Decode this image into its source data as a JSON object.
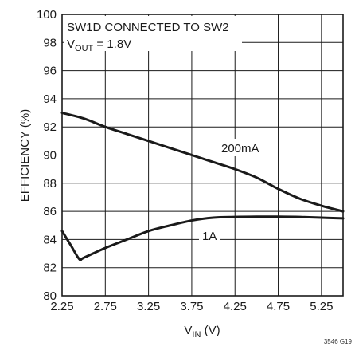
{
  "chart_data": {
    "type": "line",
    "title": "",
    "annotations": {
      "line1": "SW1D CONNECTED TO SW2",
      "line2_prefix": "V",
      "line2_sub": "OUT",
      "line2_rest": " = 1.8V"
    },
    "xlabel": {
      "main": "V",
      "sub": "IN",
      "rest": " (V)"
    },
    "ylabel": "EFFICIENCY (%)",
    "xlim": [
      2.25,
      5.5
    ],
    "ylim": [
      80,
      100
    ],
    "xticks": [
      "2.25",
      "2.75",
      "3.25",
      "3.75",
      "4.25",
      "4.75",
      "5.25"
    ],
    "yticks": [
      "80",
      "82",
      "84",
      "86",
      "88",
      "90",
      "92",
      "94",
      "96",
      "98",
      "100"
    ],
    "grid": true,
    "series": [
      {
        "name": "200mA",
        "x": [
          2.25,
          2.5,
          2.75,
          3.0,
          3.25,
          3.5,
          3.75,
          4.0,
          4.25,
          4.5,
          4.75,
          5.0,
          5.25,
          5.5
        ],
        "y": [
          93.0,
          92.6,
          92.0,
          91.5,
          91.0,
          90.5,
          90.0,
          89.5,
          89.0,
          88.4,
          87.6,
          86.9,
          86.4,
          86.0
        ]
      },
      {
        "name": "1A",
        "x": [
          2.25,
          2.35,
          2.45,
          2.5,
          2.75,
          3.0,
          3.25,
          3.5,
          3.75,
          4.0,
          4.25,
          4.5,
          4.75,
          5.0,
          5.25,
          5.5
        ],
        "y": [
          84.6,
          83.6,
          82.6,
          82.7,
          83.4,
          84.0,
          84.6,
          85.0,
          85.35,
          85.55,
          85.6,
          85.62,
          85.62,
          85.6,
          85.55,
          85.5
        ]
      }
    ],
    "figure_id": "3546 G19"
  }
}
